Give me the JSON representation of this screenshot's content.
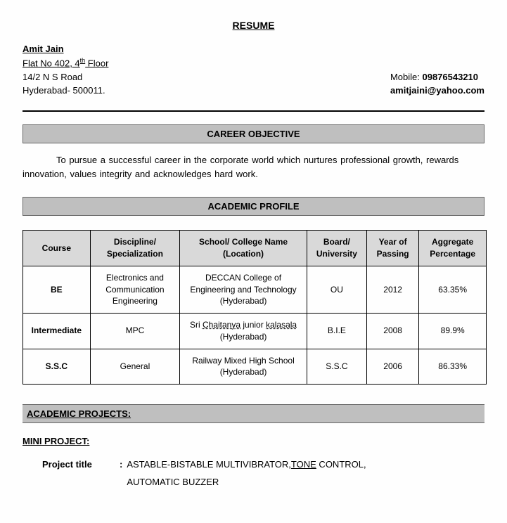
{
  "title": "RESUME",
  "name": "Amit Jain",
  "address": {
    "line1_pre": "Flat No 402, 4",
    "line1_sup": "th",
    "line1_post": " Floor",
    "line2": "14/2 N S Road",
    "line3": "Hyderabad- 500011."
  },
  "contact": {
    "mobile_label": "Mobile: ",
    "mobile": "09876543210",
    "email": "amitjaini@yahoo.com"
  },
  "sections": {
    "objective_title": "CAREER OBJECTIVE",
    "objective_text": "To pursue a successful career in the corporate world which nurtures professional growth, rewards innovation, values integrity and acknowledges hard work.",
    "academic_title": "ACADEMIC PROFILE",
    "projects_title": "ACADEMIC PROJECTS:",
    "mini_project": "MINI PROJECT:",
    "project_label": "Project title",
    "project_value_l1_a": "ASTABLE-BISTABLE MULTIVIBRATOR,",
    "project_value_l1_b": "TONE",
    "project_value_l1_c": " CONTROL,",
    "project_value_l2": "AUTOMATIC BUZZER"
  },
  "table": {
    "headers": [
      "Course",
      "Discipline/ Specialization",
      "School/ College Name (Location)",
      "Board/ University",
      "Year of Passing",
      "Aggregate Percentage"
    ],
    "col_widths": [
      "90px",
      "120px",
      "170px",
      "80px",
      "70px",
      "90px"
    ],
    "rows": [
      {
        "course": "BE",
        "discipline": "Electronics and Communication Engineering",
        "school": "DECCAN College of Engineering and Technology (Hyderabad)",
        "board": "OU",
        "year": "2012",
        "aggregate": "63.35%"
      },
      {
        "course": "Intermediate",
        "discipline": "MPC",
        "school_pre": "Sri ",
        "school_u1": "Chaitanya",
        "school_mid": " junior ",
        "school_u2": "kalasala",
        "school_post": " (Hyderabad)",
        "board": "B.I.E",
        "year": "2008",
        "aggregate": "89.9%"
      },
      {
        "course": "S.S.C",
        "discipline": "General",
        "school": "Railway Mixed High School (Hyderabad)",
        "board": "S.S.C",
        "year": "2006",
        "aggregate": "86.33%"
      }
    ]
  },
  "styling": {
    "section_bar_bg": "#bfbfbf",
    "table_header_bg": "#d9d9d9",
    "border_color": "#000000",
    "background": "#fefefe",
    "body_font_size": 13,
    "table_font_size": 12
  }
}
